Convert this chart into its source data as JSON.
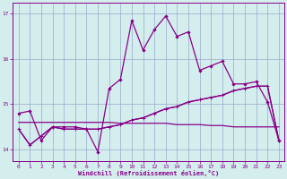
{
  "xlabel": "Windchill (Refroidissement éolien,°C)",
  "bg_color": "#d4eeee",
  "line_color": "#880088",
  "grid_color": "#99aacc",
  "xlim": [
    -0.5,
    23.5
  ],
  "ylim": [
    13.75,
    17.25
  ],
  "yticks": [
    14,
    15,
    16,
    17
  ],
  "xticks": [
    0,
    1,
    2,
    3,
    4,
    5,
    6,
    7,
    8,
    9,
    10,
    11,
    12,
    13,
    14,
    15,
    16,
    17,
    18,
    19,
    20,
    21,
    22,
    23
  ],
  "series1_x": [
    0,
    1,
    2,
    3,
    4,
    5,
    6,
    7,
    8,
    9,
    10,
    11,
    12,
    13,
    14,
    15,
    16,
    17,
    18,
    19,
    20,
    21,
    22,
    23
  ],
  "series1_y": [
    14.8,
    14.85,
    14.2,
    14.5,
    14.5,
    14.5,
    14.45,
    13.95,
    15.35,
    15.55,
    16.85,
    16.2,
    16.65,
    16.95,
    16.5,
    16.6,
    15.75,
    15.85,
    15.95,
    15.45,
    15.45,
    15.5,
    15.05,
    14.2
  ],
  "series2_x": [
    0,
    1,
    2,
    3,
    4,
    5,
    6,
    7,
    8,
    9,
    10,
    11,
    12,
    13,
    14,
    15,
    16,
    17,
    18,
    19,
    20,
    21,
    22,
    23
  ],
  "series2_y": [
    14.45,
    14.1,
    14.3,
    14.5,
    14.45,
    14.45,
    14.45,
    14.45,
    14.5,
    14.55,
    14.65,
    14.7,
    14.8,
    14.9,
    14.95,
    15.05,
    15.1,
    15.15,
    15.2,
    15.3,
    15.35,
    15.4,
    15.4,
    14.2
  ],
  "series3_x": [
    0,
    1,
    2,
    3,
    4,
    5,
    6,
    7,
    8,
    9,
    10,
    11,
    12,
    13,
    14,
    15,
    16,
    17,
    18,
    19,
    20,
    21,
    22,
    23
  ],
  "series3_y": [
    14.45,
    14.1,
    14.3,
    14.5,
    14.45,
    14.45,
    14.45,
    14.45,
    14.5,
    14.55,
    14.65,
    14.7,
    14.8,
    14.9,
    14.95,
    15.05,
    15.1,
    15.15,
    15.2,
    15.3,
    15.35,
    15.4,
    15.4,
    14.2
  ],
  "series4_x": [
    0,
    1,
    2,
    3,
    4,
    5,
    6,
    7,
    8,
    9,
    10,
    11,
    12,
    13,
    14,
    15,
    16,
    17,
    18,
    19,
    20,
    21,
    22,
    23
  ],
  "series4_y": [
    14.6,
    14.6,
    14.6,
    14.6,
    14.6,
    14.6,
    14.6,
    14.6,
    14.6,
    14.58,
    14.58,
    14.58,
    14.58,
    14.58,
    14.55,
    14.55,
    14.55,
    14.53,
    14.53,
    14.5,
    14.5,
    14.5,
    14.5,
    14.5
  ]
}
